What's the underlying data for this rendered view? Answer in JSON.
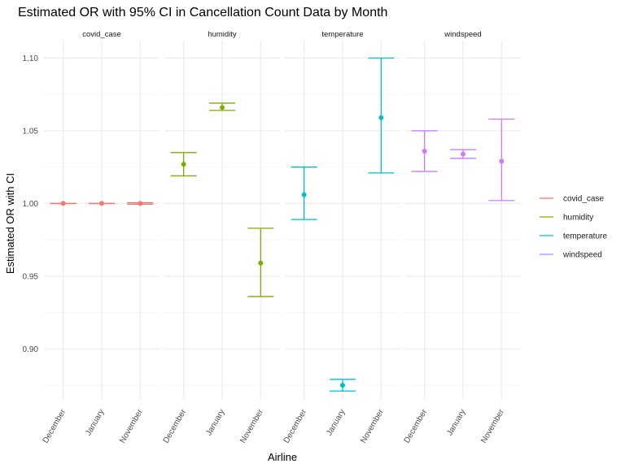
{
  "chart_data": {
    "type": "errorbar",
    "title": "Estimated OR with 95% CI in Cancellation Count Data by Month",
    "xlabel": "Airline",
    "ylabel": "Estimated OR with CI",
    "ylim": [
      0.865,
      1.112
    ],
    "yticks": [
      0.9,
      0.95,
      1.0,
      1.05,
      1.1
    ],
    "ytick_labels": [
      "0.90",
      "0.95",
      "1.00",
      "1.05",
      "1.10"
    ],
    "categories": [
      "December",
      "January",
      "November"
    ],
    "grid": true,
    "legend_position": "right",
    "panels": [
      {
        "name": "covid_case",
        "color": "#F8766D",
        "points": [
          {
            "x": "December",
            "or": 1.0,
            "lower": 1.0,
            "upper": 1.0
          },
          {
            "x": "January",
            "or": 1.0,
            "lower": 1.0,
            "upper": 1.0
          },
          {
            "x": "November",
            "or": 1.0,
            "lower": 0.9995,
            "upper": 1.0005
          }
        ]
      },
      {
        "name": "humidity",
        "color": "#7CAE00",
        "points": [
          {
            "x": "December",
            "or": 1.027,
            "lower": 1.019,
            "upper": 1.035
          },
          {
            "x": "January",
            "or": 1.066,
            "lower": 1.064,
            "upper": 1.069
          },
          {
            "x": "November",
            "or": 0.959,
            "lower": 0.936,
            "upper": 0.983
          }
        ]
      },
      {
        "name": "temperature",
        "color": "#00BFC4",
        "points": [
          {
            "x": "December",
            "or": 1.006,
            "lower": 0.989,
            "upper": 1.025
          },
          {
            "x": "January",
            "or": 0.875,
            "lower": 0.871,
            "upper": 0.879
          },
          {
            "x": "November",
            "or": 1.059,
            "lower": 1.021,
            "upper": 1.1
          }
        ]
      },
      {
        "name": "windspeed",
        "color": "#C77CFF",
        "points": [
          {
            "x": "December",
            "or": 1.036,
            "lower": 1.022,
            "upper": 1.05
          },
          {
            "x": "January",
            "or": 1.034,
            "lower": 1.031,
            "upper": 1.037
          },
          {
            "x": "November",
            "or": 1.029,
            "lower": 1.002,
            "upper": 1.058
          }
        ]
      }
    ],
    "legend": [
      "covid_case",
      "humidity",
      "temperature",
      "windspeed"
    ]
  }
}
